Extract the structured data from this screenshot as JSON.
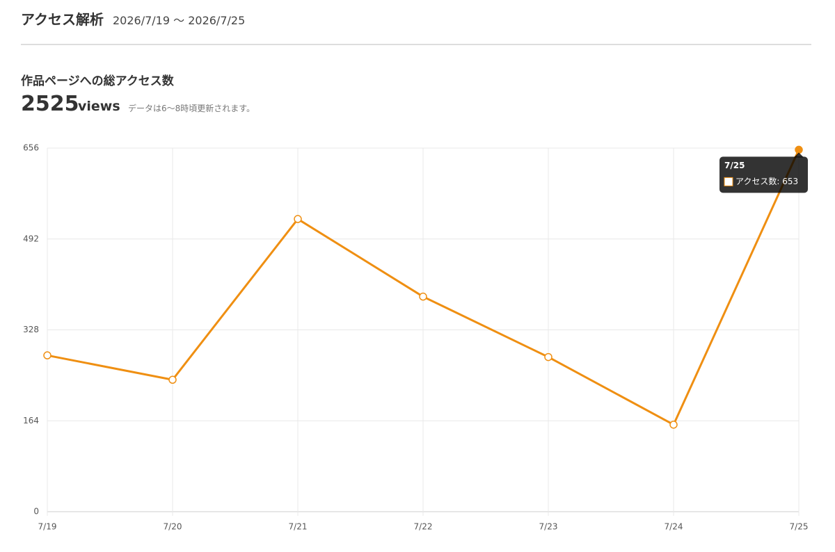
{
  "header": {
    "title": "アクセス解析",
    "period": "2026/7/19 〜 2026/7/25"
  },
  "summary": {
    "heading": "作品ページへの総アクセス数",
    "total": "2525",
    "unit": "views",
    "note": "データは6〜8時頃更新されます。"
  },
  "chart_data": {
    "type": "line",
    "categories": [
      "7/19",
      "7/20",
      "7/21",
      "7/22",
      "7/23",
      "7/24",
      "7/25"
    ],
    "series": [
      {
        "name": "アクセス数",
        "color": "#ef8f12",
        "values": [
          282,
          238,
          528,
          388,
          279,
          157,
          653
        ]
      }
    ],
    "ylim": [
      0,
      656
    ],
    "yticks": [
      0,
      164,
      328,
      492,
      656
    ],
    "grid": true,
    "tooltip": {
      "title": "7/25",
      "label": "アクセス数: 653"
    }
  }
}
